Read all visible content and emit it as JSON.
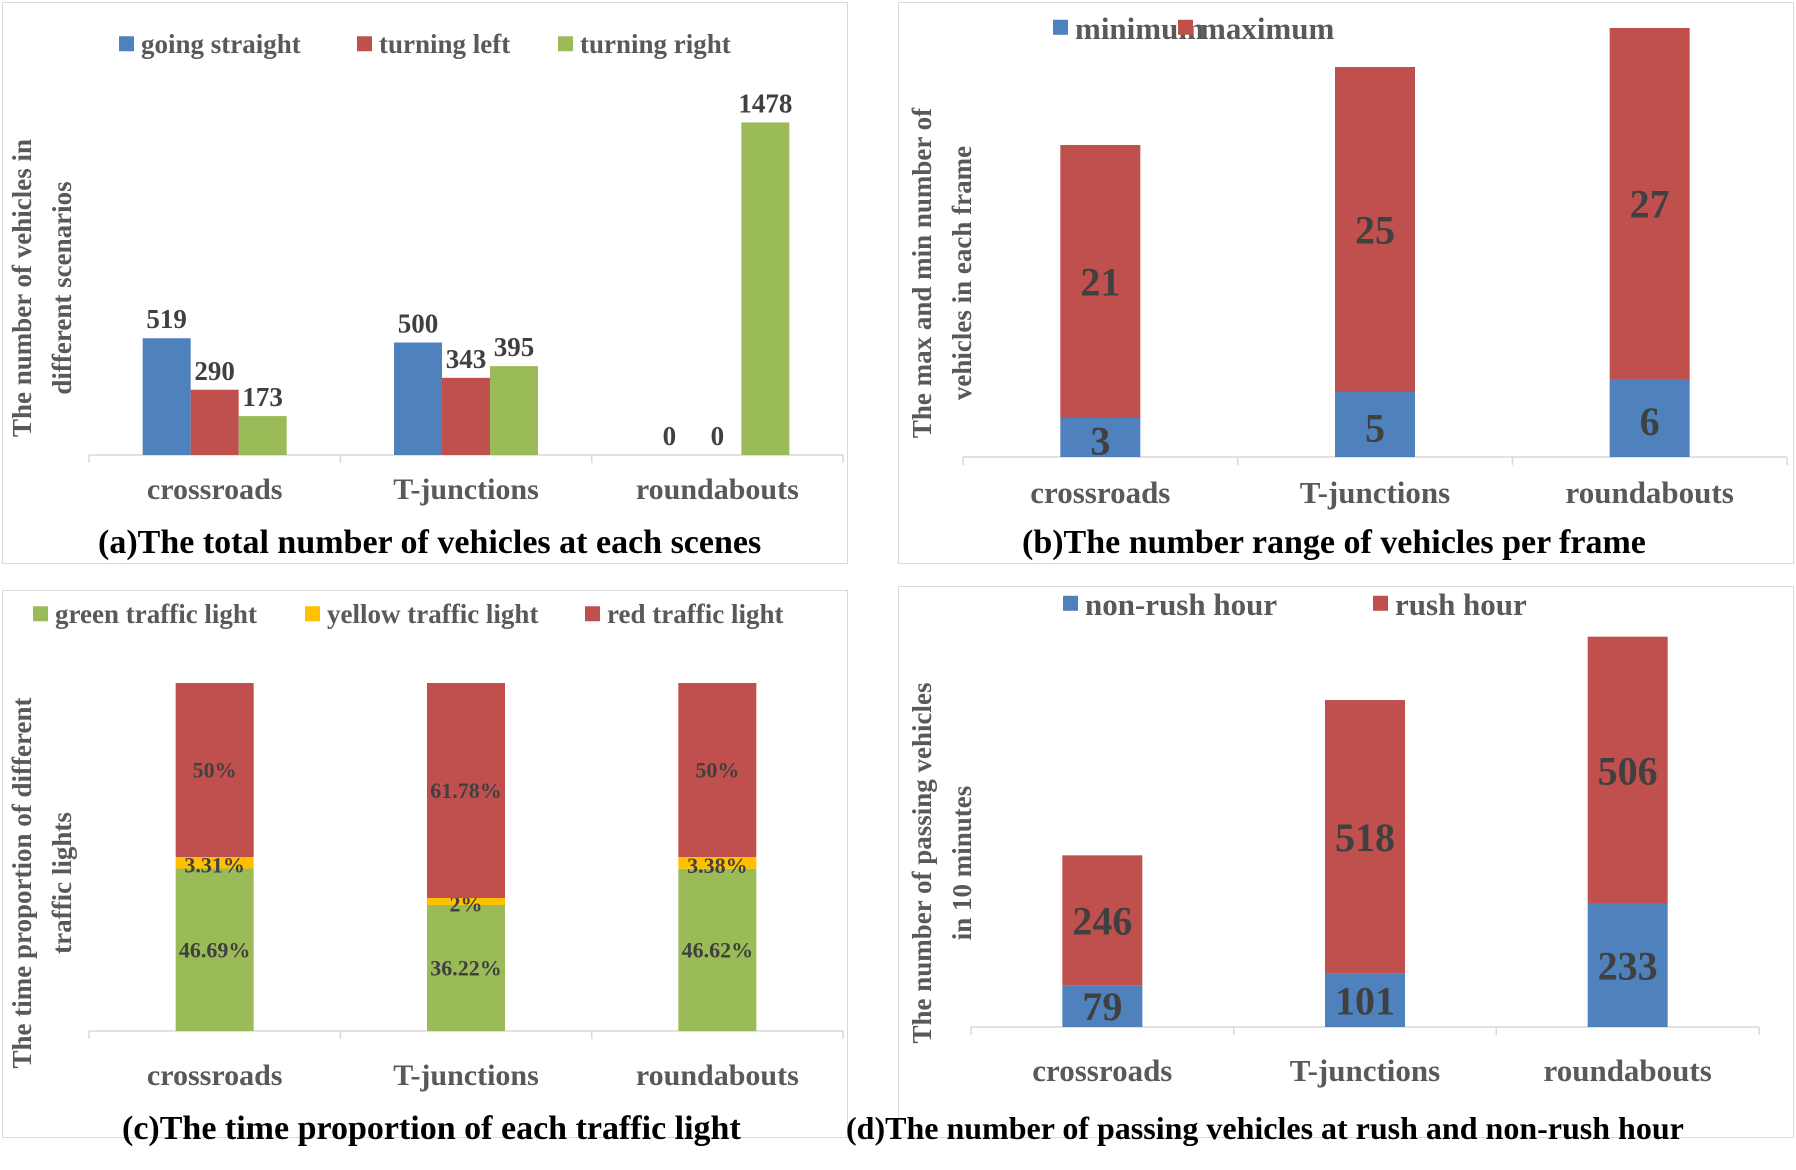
{
  "colors": {
    "blue": "#4f81bd",
    "red": "#c0504d",
    "green": "#9bbb59",
    "yellow": "#ffc000",
    "axis_text": "#595959",
    "label_text": "#404040",
    "axis_line": "#d9d9d9"
  },
  "chart_data": [
    {
      "id": "a",
      "type": "bar",
      "caption": "(a)The total number of vehicles at each scenes",
      "ylabel": [
        "The number of vehicles in",
        "different scenarios"
      ],
      "xlabel": "",
      "categories": [
        "crossroads",
        "T-junctions",
        "roundabouts"
      ],
      "series": [
        {
          "name": "going straight",
          "color": "#4f81bd",
          "values": [
            519,
            500,
            0
          ]
        },
        {
          "name": "turning left",
          "color": "#c0504d",
          "values": [
            290,
            343,
            0
          ]
        },
        {
          "name": "turning right",
          "color": "#9bbb59",
          "values": [
            173,
            395,
            1478
          ]
        }
      ],
      "data_labels": [
        [
          "519",
          "290",
          "173"
        ],
        [
          "500",
          "343",
          "395"
        ],
        [
          "0",
          "0",
          "1478"
        ]
      ],
      "ylim": [
        0,
        1600
      ],
      "grid": false,
      "legend": "top"
    },
    {
      "id": "b",
      "type": "bar",
      "stacked": true,
      "caption": "(b)The number range of vehicles per frame",
      "ylabel": [
        "The max and min number of",
        "vehicles in each frame"
      ],
      "xlabel": "",
      "categories": [
        "crossroads",
        "T-junctions",
        "roundabouts"
      ],
      "series": [
        {
          "name": "minimum",
          "color": "#4f81bd",
          "values": [
            3,
            5,
            6
          ]
        },
        {
          "name": "maximum",
          "color": "#c0504d",
          "values": [
            21,
            25,
            27
          ]
        }
      ],
      "ylim": [
        0,
        34
      ],
      "grid": false,
      "legend": "top"
    },
    {
      "id": "c",
      "type": "bar",
      "stacked": true,
      "caption": "(c)The time proportion of each traffic light",
      "ylabel": [
        "The time proportion of different",
        "traffic lights"
      ],
      "xlabel": "",
      "categories": [
        "crossroads",
        "T-junctions",
        "roundabouts"
      ],
      "series": [
        {
          "name": "green traffic light",
          "color": "#9bbb59",
          "values": [
            46.69,
            36.22,
            46.62
          ],
          "labels": [
            "46.69%",
            "36.22%",
            "46.62%"
          ]
        },
        {
          "name": "yellow traffic light",
          "color": "#ffc000",
          "values": [
            3.31,
            2,
            3.38
          ],
          "labels": [
            "3.31%",
            "2%",
            "3.38%"
          ]
        },
        {
          "name": "red traffic light",
          "color": "#c0504d",
          "values": [
            50,
            61.78,
            50
          ],
          "labels": [
            "50%",
            "61.78%",
            "50%"
          ]
        }
      ],
      "ylim": [
        0,
        100
      ],
      "grid": false,
      "legend": "top"
    },
    {
      "id": "d",
      "type": "bar",
      "stacked": true,
      "caption": "(d)The number of passing vehicles at rush and non-rush hour",
      "ylabel": [
        "The number of passing vehicles",
        "in 10 minutes"
      ],
      "xlabel": "",
      "categories": [
        "crossroads",
        "T-junctions",
        "roundabouts"
      ],
      "series": [
        {
          "name": "non-rush hour",
          "color": "#4f81bd",
          "values": [
            79,
            101,
            233
          ]
        },
        {
          "name": "rush hour",
          "color": "#c0504d",
          "values": [
            246,
            518,
            506
          ]
        }
      ],
      "ylim": [
        0,
        780
      ],
      "grid": false,
      "legend": "top"
    }
  ]
}
